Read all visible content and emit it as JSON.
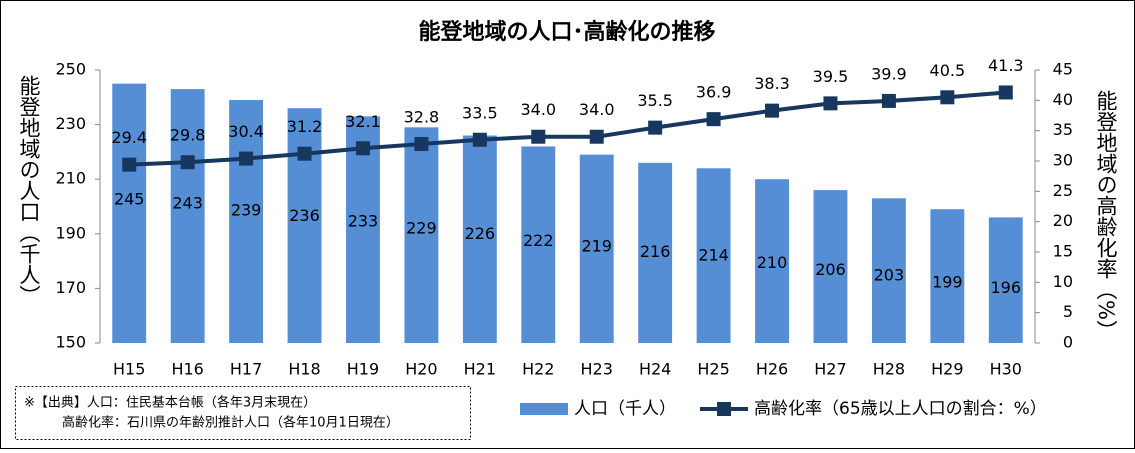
{
  "chart_data": {
    "type": "bar_line",
    "title": "能登地域の人口･高齢化の推移",
    "y_label": "能登地域の人口（千人）",
    "y2_label": "能登地域の高齢化率（%）",
    "categories": [
      "H15",
      "H16",
      "H17",
      "H18",
      "H19",
      "H20",
      "H21",
      "H22",
      "H23",
      "H24",
      "H25",
      "H26",
      "H27",
      "H28",
      "H29",
      "H30"
    ],
    "series": [
      {
        "name": "人口（千人）",
        "type": "bar",
        "color": "#558ed5",
        "values": [
          245,
          243,
          239,
          236,
          233,
          229,
          226,
          222,
          219,
          216,
          214,
          210,
          206,
          203,
          199,
          196
        ]
      },
      {
        "name": "高齢化率（65歳以上人口の割合：%）",
        "type": "line",
        "axis": "y2",
        "color": "#17375e",
        "values": [
          29.4,
          29.8,
          30.4,
          31.2,
          32.1,
          32.8,
          33.5,
          34.0,
          34.0,
          35.5,
          36.9,
          38.3,
          39.5,
          39.9,
          40.5,
          41.3
        ],
        "value_labels": [
          "29.4",
          "29.8",
          "30.4",
          "31.2",
          "32.1",
          "32.8",
          "33.5",
          "34.0",
          "34.0",
          "35.5",
          "36.9",
          "38.3",
          "39.5",
          "39.9",
          "40.5",
          "41.3"
        ]
      }
    ],
    "ylim": [
      150,
      250
    ],
    "yticks": [
      150,
      170,
      190,
      210,
      230,
      250
    ],
    "y2lim": [
      0,
      45
    ],
    "y2ticks": [
      0,
      5,
      10,
      15,
      20,
      25,
      30,
      35,
      40,
      45
    ],
    "grid": false,
    "source": [
      "※【出典】人口：住民基本台帳（各年3月末現在）",
      "高齢化率：石川県の年齢別推計人口（各年10月1日現在）"
    ]
  }
}
